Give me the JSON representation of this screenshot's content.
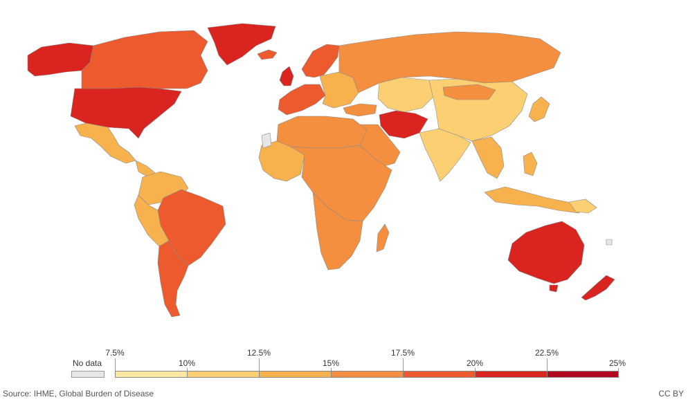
{
  "map": {
    "colors": {
      "no_data": "#e6e6e6",
      "band_7_5_10": "#fde8a1",
      "band_10_12_5": "#fccf73",
      "band_12_5_15": "#f8b24d",
      "band_15_17_5": "#f48f3f",
      "band_17_5_20": "#ec5a2e",
      "band_20_22_5": "#d9241f",
      "band_22_5_25": "#b00820"
    }
  },
  "legend": {
    "no_data_label": "No data",
    "ticks_top": [
      "7.5%",
      "12.5%",
      "17.5%",
      "22.5%"
    ],
    "ticks_bottom": [
      "10%",
      "15%",
      "20%",
      "25%"
    ]
  },
  "footer": {
    "source": "Source: IHME, Global Burden of Disease",
    "license": "CC BY"
  }
}
